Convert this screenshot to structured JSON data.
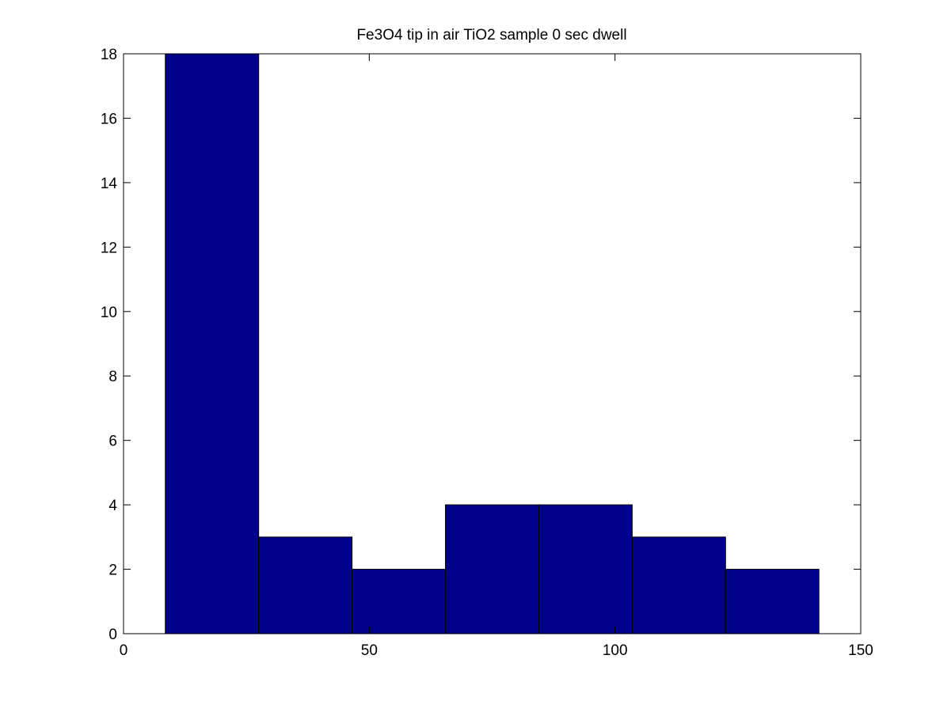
{
  "chart_data": {
    "type": "bar",
    "title": "Fe3O4 tip in air TiO2 sample 0 sec dwell",
    "xlabel": "",
    "ylabel": "",
    "xlim": [
      0,
      150
    ],
    "ylim": [
      0,
      18
    ],
    "xticks": [
      0,
      50,
      100,
      150
    ],
    "yticks": [
      0,
      2,
      4,
      6,
      8,
      10,
      12,
      14,
      16,
      18
    ],
    "bin_edges": [
      8.5,
      27.5,
      46.5,
      65.5,
      84.5,
      103.5,
      122.5,
      141.5
    ],
    "values": [
      18,
      3,
      2,
      4,
      4,
      3,
      2
    ],
    "grid": false,
    "legend": "none",
    "bar_color": "#00008B",
    "edge_color": "#000000"
  }
}
